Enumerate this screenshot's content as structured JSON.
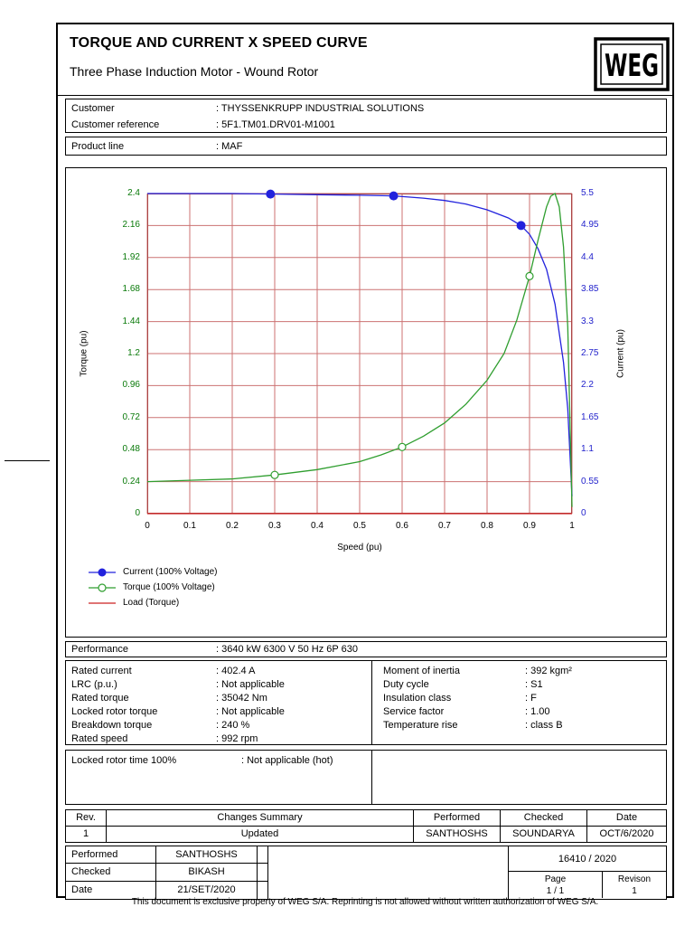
{
  "header": {
    "title": "TORQUE AND CURRENT X SPEED CURVE",
    "subtitle": "Three Phase Induction Motor - Wound Rotor",
    "logo_text": "WEG"
  },
  "customer_info": {
    "rows": [
      {
        "label": "Customer",
        "value": ": THYSSENKRUPP INDUSTRIAL SOLUTIONS"
      },
      {
        "label": "Customer reference",
        "value": ": 5F1.TM01.DRV01-M1001"
      },
      {
        "label": "Product line",
        "value": ": MAF"
      }
    ]
  },
  "chart_data": {
    "type": "line",
    "title": "",
    "xlabel": "Speed (pu)",
    "ylabel_left": "Torque (pu)",
    "ylabel_right": "Current (pu)",
    "x_max": 1,
    "y_left_max": 2.4,
    "y_right_max": 5.5,
    "x_tick_labels": [
      "0",
      "0.1",
      "0.2",
      "0.3",
      "0.4",
      "0.5",
      "0.6",
      "0.7",
      "0.8",
      "0.9",
      "1"
    ],
    "y_left_tick_labels": [
      "0",
      "0.24",
      "0.48",
      "0.72",
      "0.96",
      "1.2",
      "1.44",
      "1.68",
      "1.92",
      "2.16",
      "2.4"
    ],
    "y_right_tick_labels": [
      "0",
      "0.55",
      "1.1",
      "1.65",
      "2.2",
      "2.75",
      "3.3",
      "3.85",
      "4.4",
      "4.95",
      "5.5"
    ],
    "grid_on": true,
    "grid_color": "#cc7272",
    "frame_color": "#aa4444",
    "tick_color_left": "#0a7a0a",
    "tick_color_right": "#2222cc",
    "legend_position": "bottom-left",
    "series": [
      {
        "name": "Current (100% Voltage)",
        "color": "#2222dd",
        "axis": "right",
        "marker": "filled-circle",
        "marker_x": [
          0.29,
          0.58,
          0.88
        ],
        "points": [
          [
            0,
            5.5
          ],
          [
            0.1,
            5.5
          ],
          [
            0.2,
            5.5
          ],
          [
            0.3,
            5.49
          ],
          [
            0.4,
            5.48
          ],
          [
            0.5,
            5.47
          ],
          [
            0.58,
            5.46
          ],
          [
            0.65,
            5.42
          ],
          [
            0.7,
            5.38
          ],
          [
            0.75,
            5.32
          ],
          [
            0.8,
            5.22
          ],
          [
            0.85,
            5.08
          ],
          [
            0.88,
            4.95
          ],
          [
            0.9,
            4.8
          ],
          [
            0.92,
            4.55
          ],
          [
            0.94,
            4.2
          ],
          [
            0.96,
            3.6
          ],
          [
            0.98,
            2.6
          ],
          [
            0.99,
            1.8
          ],
          [
            1,
            0.3
          ]
        ]
      },
      {
        "name": "Torque (100% Voltage)",
        "color": "#2f9e2f",
        "axis": "left",
        "marker": "open-circle",
        "marker_x": [
          0.3,
          0.6,
          0.9
        ],
        "points": [
          [
            0,
            0.24
          ],
          [
            0.1,
            0.25
          ],
          [
            0.2,
            0.26
          ],
          [
            0.3,
            0.29
          ],
          [
            0.4,
            0.33
          ],
          [
            0.5,
            0.39
          ],
          [
            0.55,
            0.44
          ],
          [
            0.6,
            0.5
          ],
          [
            0.65,
            0.58
          ],
          [
            0.7,
            0.68
          ],
          [
            0.75,
            0.82
          ],
          [
            0.8,
            1.0
          ],
          [
            0.84,
            1.2
          ],
          [
            0.87,
            1.45
          ],
          [
            0.9,
            1.78
          ],
          [
            0.92,
            2.05
          ],
          [
            0.94,
            2.3
          ],
          [
            0.95,
            2.38
          ],
          [
            0.96,
            2.4
          ],
          [
            0.97,
            2.3
          ],
          [
            0.98,
            2.0
          ],
          [
            0.99,
            1.4
          ],
          [
            1,
            0.05
          ]
        ]
      },
      {
        "name": "Load (Torque)",
        "color": "#cc2222",
        "axis": "left",
        "marker": "none",
        "marker_x": [],
        "points": [
          [
            0,
            0
          ],
          [
            1,
            0
          ]
        ]
      }
    ]
  },
  "performance": {
    "label": "Performance",
    "value": ": 3640 kW 6300 V 50 Hz 6P 630"
  },
  "specs": {
    "left": [
      {
        "label": "Rated current",
        "value": ": 402.4 A"
      },
      {
        "label": "LRC (p.u.)",
        "value": ": Not applicable"
      },
      {
        "label": "Rated torque",
        "value": ": 35042 Nm"
      },
      {
        "label": "Locked rotor torque",
        "value": ": Not applicable"
      },
      {
        "label": "Breakdown torque",
        "value": ": 240 %"
      },
      {
        "label": "Rated speed",
        "value": ": 992 rpm"
      }
    ],
    "right": [
      {
        "label": "Moment of inertia",
        "value": ": 392 kgm²"
      },
      {
        "label": "Duty cycle",
        "value": ": S1"
      },
      {
        "label": "Insulation class",
        "value": ": F"
      },
      {
        "label": "Service factor",
        "value": ": 1.00"
      },
      {
        "label": "Temperature rise",
        "value": ": class B"
      }
    ]
  },
  "locked_rotor": {
    "label": "Locked rotor time 100%",
    "value": ": Not applicable (hot)"
  },
  "revision_table": {
    "headers": [
      "Rev.",
      "Changes Summary",
      "Performed",
      "Checked",
      "Date"
    ],
    "row": [
      "1",
      "Updated",
      "SANTHOSHS",
      "SOUNDARYA",
      "OCT/6/2020"
    ]
  },
  "signoff": {
    "rows": [
      {
        "label": "Performed",
        "value": "SANTHOSHS"
      },
      {
        "label": "Checked",
        "value": "BIKASH"
      },
      {
        "label": "Date",
        "value": "21/SET/2020"
      }
    ],
    "doc_number": "16410 / 2020",
    "page_label": "Page",
    "page_value": "1 / 1",
    "revision_label": "Revison",
    "revision_value": "1"
  },
  "footer": "This document is exclusive property of WEG S/A. Reprinting is not allowed without written authorization of WEG S/A."
}
